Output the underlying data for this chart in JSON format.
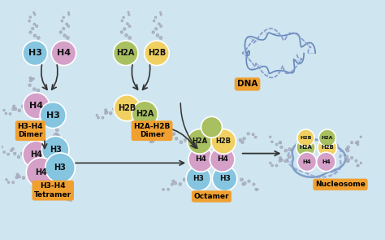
{
  "bg_color": "#cfe5f0",
  "histone_colors": {
    "H3": "#85c5e0",
    "H4": "#d4a0c8",
    "H2A": "#a8c060",
    "H2B": "#f0d060"
  },
  "label_bg": "#f0a030",
  "labels": {
    "dimer1": "H3-H4\nDimer",
    "dimer2": "H2A-H2B\nDimer",
    "tetramer": "H3-H4\nTetramer",
    "octamer": "Octamer",
    "nucleosome": "Nucleosome",
    "dna": "DNA"
  }
}
